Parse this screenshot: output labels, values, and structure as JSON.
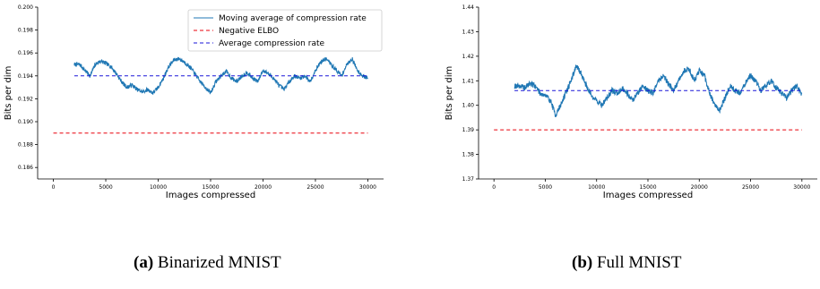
{
  "captions": {
    "a": {
      "label": "(a)",
      "text": "Binarized MNIST"
    },
    "b": {
      "label": "(b)",
      "text": "Full MNIST"
    }
  },
  "chart_data": [
    {
      "type": "line",
      "xlabel": "Images compressed",
      "ylabel": "Bits per dim",
      "xlim": [
        -1500,
        31500
      ],
      "ylim": [
        0.185,
        0.2
      ],
      "xticks": [
        0,
        5000,
        10000,
        15000,
        20000,
        25000,
        30000
      ],
      "yticks": [
        0.186,
        0.188,
        0.19,
        0.192,
        0.194,
        0.196,
        0.198,
        0.2
      ],
      "ytick_labels": [
        "0.186",
        "0.188",
        "0.190",
        "0.192",
        "0.194",
        "0.196",
        "0.198",
        "0.200"
      ],
      "legend_position": "top-right",
      "series": [
        {
          "name": "Moving average of compression rate",
          "color": "#1f77b4",
          "style": "solid",
          "noise": 0.00018,
          "x": [
            2000,
            2500,
            3000,
            3500,
            4000,
            4500,
            5000,
            5500,
            6000,
            6500,
            7000,
            7500,
            8000,
            8500,
            9000,
            9500,
            10000,
            10500,
            11000,
            11500,
            12000,
            12500,
            13000,
            13500,
            14000,
            14500,
            15000,
            15500,
            16000,
            16500,
            17000,
            17500,
            18000,
            18500,
            19000,
            19500,
            20000,
            20500,
            21000,
            21500,
            22000,
            22500,
            23000,
            23500,
            24000,
            24500,
            25000,
            25500,
            26000,
            26500,
            27000,
            27500,
            28000,
            28500,
            29000,
            29500,
            30000
          ],
          "y": [
            0.195,
            0.195,
            0.1945,
            0.194,
            0.195,
            0.1953,
            0.1951,
            0.1948,
            0.1942,
            0.1935,
            0.193,
            0.1932,
            0.1928,
            0.1926,
            0.1928,
            0.1925,
            0.193,
            0.1938,
            0.1948,
            0.1954,
            0.1955,
            0.1952,
            0.1948,
            0.1942,
            0.1935,
            0.193,
            0.1925,
            0.1935,
            0.194,
            0.1944,
            0.1938,
            0.1935,
            0.194,
            0.1943,
            0.1938,
            0.1935,
            0.1945,
            0.1942,
            0.1938,
            0.1932,
            0.1928,
            0.1935,
            0.194,
            0.1938,
            0.194,
            0.1935,
            0.1945,
            0.1952,
            0.1955,
            0.195,
            0.1945,
            0.194,
            0.195,
            0.1955,
            0.1945,
            0.194,
            0.1938
          ]
        },
        {
          "name": "Negative ELBO",
          "color": "#e8000b",
          "style": "dashed",
          "x": [
            0,
            30000
          ],
          "y": [
            0.189,
            0.189
          ]
        },
        {
          "name": "Average compression rate",
          "color": "#1a16d8",
          "style": "dashed",
          "x": [
            2000,
            30000
          ],
          "y": [
            0.194,
            0.194
          ]
        }
      ]
    },
    {
      "type": "line",
      "xlabel": "Images compressed",
      "ylabel": "Bits per dim",
      "xlim": [
        -1500,
        31500
      ],
      "ylim": [
        1.37,
        1.44
      ],
      "xticks": [
        0,
        5000,
        10000,
        15000,
        20000,
        25000,
        30000
      ],
      "yticks": [
        1.37,
        1.38,
        1.39,
        1.4,
        1.41,
        1.42,
        1.43,
        1.44
      ],
      "ytick_labels": [
        "1.37",
        "1.38",
        "1.39",
        "1.40",
        "1.41",
        "1.42",
        "1.43",
        "1.44"
      ],
      "legend_position": "none",
      "series": [
        {
          "name": "Moving average of compression rate",
          "color": "#1f77b4",
          "style": "solid",
          "noise": 0.0012,
          "x": [
            2000,
            2500,
            3000,
            3500,
            4000,
            4500,
            5000,
            5500,
            6000,
            6500,
            7000,
            7500,
            8000,
            8500,
            9000,
            9500,
            10000,
            10500,
            11000,
            11500,
            12000,
            12500,
            13000,
            13500,
            14000,
            14500,
            15000,
            15500,
            16000,
            16500,
            17000,
            17500,
            18000,
            18500,
            19000,
            19500,
            20000,
            20500,
            21000,
            21500,
            22000,
            22500,
            23000,
            23500,
            24000,
            24500,
            25000,
            25500,
            26000,
            26500,
            27000,
            27500,
            28000,
            28500,
            29000,
            29500,
            30000
          ],
          "y": [
            1.408,
            1.408,
            1.407,
            1.409,
            1.408,
            1.405,
            1.404,
            1.402,
            1.396,
            1.4,
            1.405,
            1.41,
            1.416,
            1.413,
            1.408,
            1.404,
            1.402,
            1.4,
            1.403,
            1.406,
            1.405,
            1.407,
            1.405,
            1.402,
            1.405,
            1.408,
            1.406,
            1.405,
            1.41,
            1.412,
            1.409,
            1.406,
            1.41,
            1.414,
            1.415,
            1.41,
            1.414,
            1.412,
            1.405,
            1.4,
            1.398,
            1.403,
            1.408,
            1.406,
            1.405,
            1.409,
            1.412,
            1.41,
            1.406,
            1.408,
            1.41,
            1.407,
            1.405,
            1.403,
            1.406,
            1.408,
            1.404
          ]
        },
        {
          "name": "Negative ELBO",
          "color": "#e8000b",
          "style": "dashed",
          "x": [
            0,
            30000
          ],
          "y": [
            1.39,
            1.39
          ]
        },
        {
          "name": "Average compression rate",
          "color": "#1a16d8",
          "style": "dashed",
          "x": [
            2000,
            30000
          ],
          "y": [
            1.406,
            1.406
          ]
        }
      ]
    }
  ]
}
